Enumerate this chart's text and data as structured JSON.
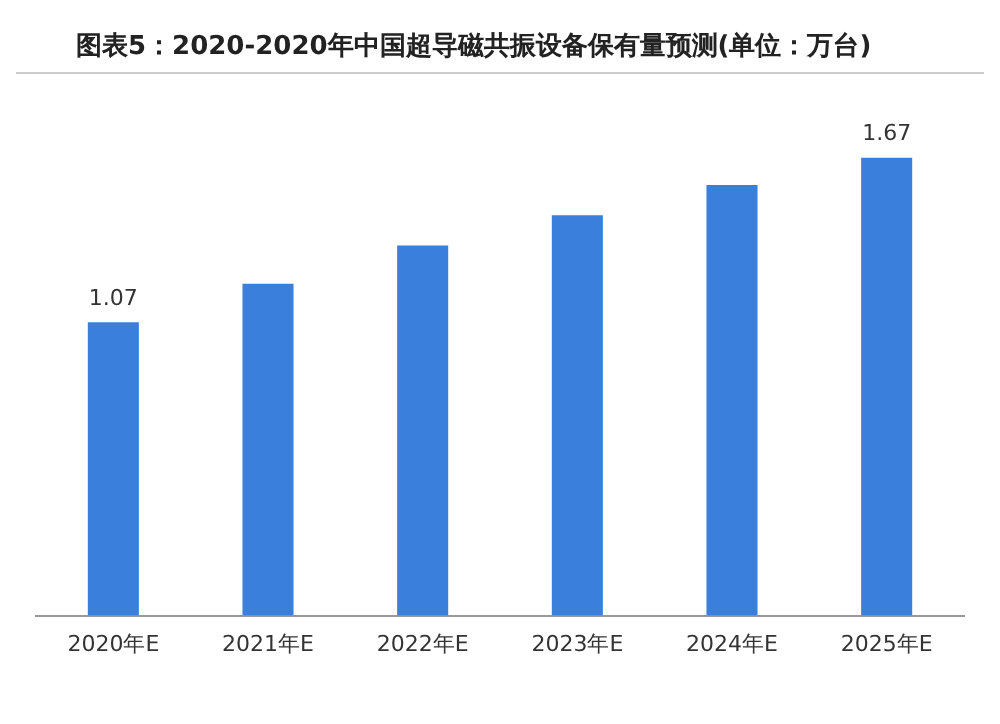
{
  "chart_data": {
    "type": "bar",
    "title": "图表5：2020-2020年中国超导磁共振设备保有量预测(单位：万台)",
    "categories": [
      "2020年E",
      "2021年E",
      "2022年E",
      "2023年E",
      "2024年E",
      "2025年E"
    ],
    "values": [
      1.07,
      1.21,
      1.35,
      1.46,
      1.57,
      1.67
    ],
    "value_labels": [
      "1.07",
      null,
      null,
      null,
      null,
      "1.67"
    ],
    "color": "#3a7fdc",
    "grid": false,
    "legend": false
  }
}
